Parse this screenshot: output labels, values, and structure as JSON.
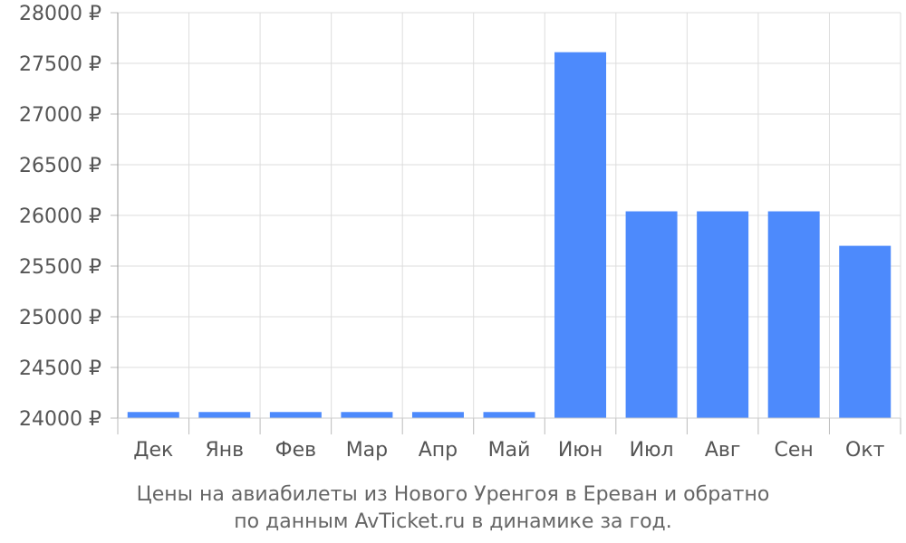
{
  "chart_data": {
    "type": "bar",
    "categories": [
      "Дек",
      "Янв",
      "Фев",
      "Мар",
      "Апр",
      "Май",
      "Июн",
      "Июл",
      "Авг",
      "Сен",
      "Окт"
    ],
    "values": [
      24060,
      24060,
      24060,
      24060,
      24060,
      24060,
      27610,
      26040,
      26040,
      26040,
      25700
    ],
    "ylim": [
      24000,
      28000
    ],
    "yticks": [
      24000,
      24500,
      25000,
      25500,
      26000,
      26500,
      27000,
      27500,
      28000
    ],
    "ytick_suffix": " ₽",
    "grid": true,
    "bar_color": "#4d8afc"
  },
  "caption": {
    "line1": "Цены на авиабилеты из Нового Уренгоя в Ереван и обратно",
    "line2": "по данным AvTicket.ru в динамике за год."
  }
}
